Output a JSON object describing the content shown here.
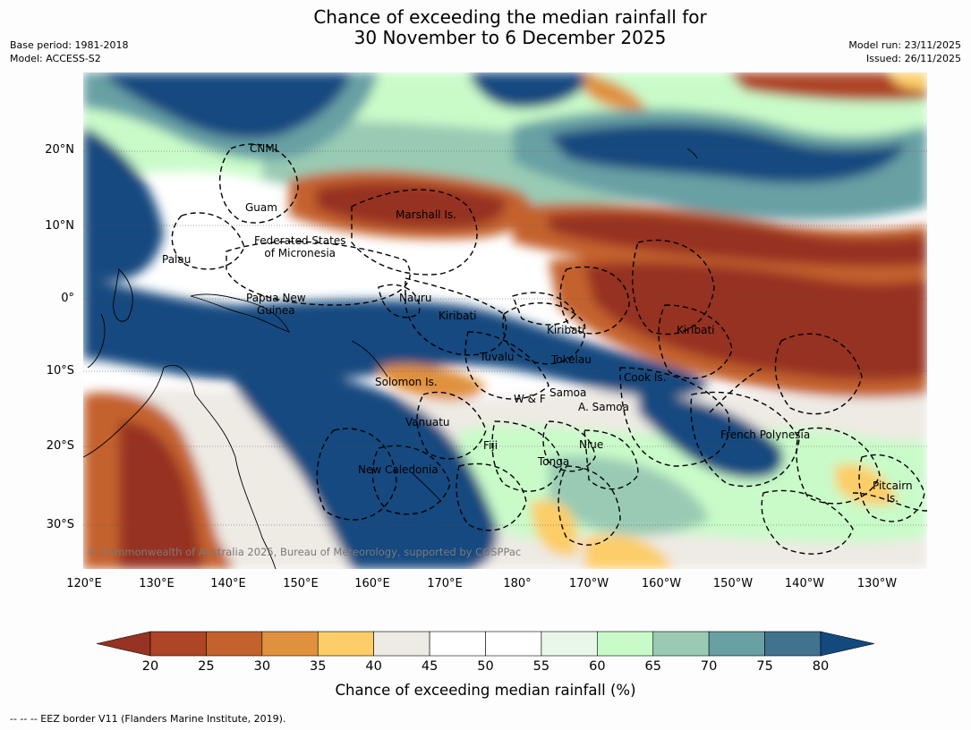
{
  "title": {
    "line1": "Chance of exceeding the median rainfall for",
    "line2": "30 November to 6 December 2025"
  },
  "meta": {
    "base_period": "Base period: 1981-2018",
    "model": "Model: ACCESS-S2",
    "model_run": "Model run: 23/11/2025",
    "issued": "Issued: 26/11/2025"
  },
  "map": {
    "lat_labels": [
      "20°N",
      "10°N",
      "0°",
      "10°S",
      "20°S",
      "30°S"
    ],
    "lon_labels": [
      "120°E",
      "130°E",
      "140°E",
      "150°E",
      "160°E",
      "170°E",
      "180°",
      "170°W",
      "160°W",
      "150°W",
      "140°W",
      "130°W"
    ],
    "places": {
      "cnmi": "CNMI",
      "guam": "Guam",
      "marshall": "Marshall Is.",
      "fsm1": "Federated States",
      "fsm2": "of Micronesia",
      "palau": "Palau",
      "nauru": "Nauru",
      "png1": "Papua New",
      "png2": "Guinea",
      "kiribati1": "Kiribati",
      "kiribati2": "Kiribati",
      "kiribati3": "Kiribati",
      "tuvalu": "Tuvalu",
      "tokelau": "Tokelau",
      "cook": "Cook Is.",
      "solomon": "Solomon Is.",
      "wf": "W & F",
      "samoa": "Samoa",
      "asamoa": "A. Samoa",
      "vanuatu": "Vanuatu",
      "fiji": "Fiji",
      "niue": "Niue",
      "tonga": "Tonga",
      "newcal": "New Caledonia",
      "frpoly": "French Polynesia",
      "pitcairn1": "Pitcairn",
      "pitcairn2": "Is."
    },
    "copyright": "© Commonwealth of Australia 2025, Bureau of Meteorology, supported by COSPPac"
  },
  "colorbar": {
    "label": "Chance of exceeding median rainfall (%)",
    "ticks": [
      "20",
      "25",
      "30",
      "35",
      "40",
      "45",
      "50",
      "55",
      "60",
      "65",
      "70",
      "75",
      "80"
    ],
    "colors": [
      "#963322",
      "#ad4527",
      "#c4622e",
      "#e0913e",
      "#fccd68",
      "#eeeae4",
      "#ffffff",
      "#ffffff",
      "#e9f7e8",
      "#c9fbc9",
      "#99cbb4",
      "#68a0a4",
      "#41738f",
      "#13497f"
    ]
  },
  "eez_note": "--  --  -- EEZ border V11 (Flanders Marine Institute, 2019)."
}
